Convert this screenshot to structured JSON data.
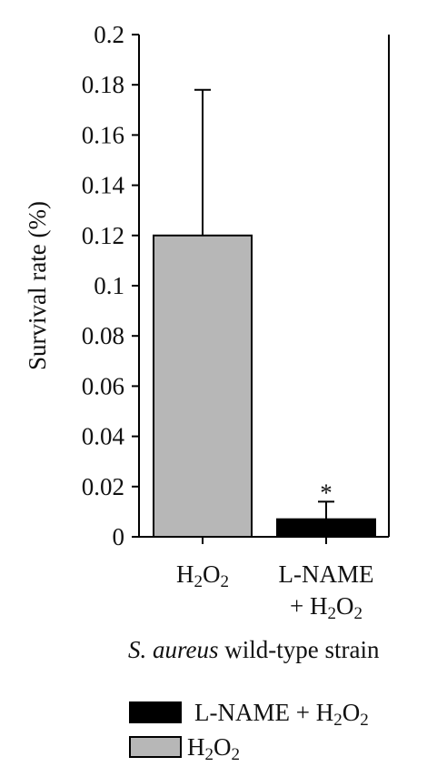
{
  "chart_data": {
    "type": "bar",
    "categories": [
      {
        "main": "H",
        "sub1": "2",
        "mid": "O",
        "sub2": "2"
      },
      {
        "line1": "L-NAME",
        "line2_prefix": "+ H",
        "sub1": "2",
        "mid": "O",
        "sub2": "2"
      }
    ],
    "values": [
      0.12,
      0.007
    ],
    "errors": [
      0.058,
      0.007
    ],
    "significance": [
      "",
      "*"
    ],
    "colors": [
      "#b7b7b7",
      "#000000"
    ],
    "ylabel": "Survival rate (%)",
    "xlabel": {
      "italic": "S. aureus",
      "rest": " wild-type strain"
    },
    "ylim": [
      0,
      0.2
    ],
    "yticks": [
      "0",
      "0.02",
      "0.04",
      "0.06",
      "0.08",
      "0.1",
      "0.12",
      "0.14",
      "0.16",
      "0.18",
      "0.2"
    ],
    "grid": false,
    "legend": {
      "position": "bottom",
      "entries": [
        {
          "prefix": "L-NAME + H",
          "sub1": "2",
          "mid": "O",
          "sub2": "2",
          "color": "#000000"
        },
        {
          "prefix": "H",
          "sub1": "2",
          "mid": "O",
          "sub2": "2",
          "color": "#b7b7b7"
        }
      ]
    }
  }
}
